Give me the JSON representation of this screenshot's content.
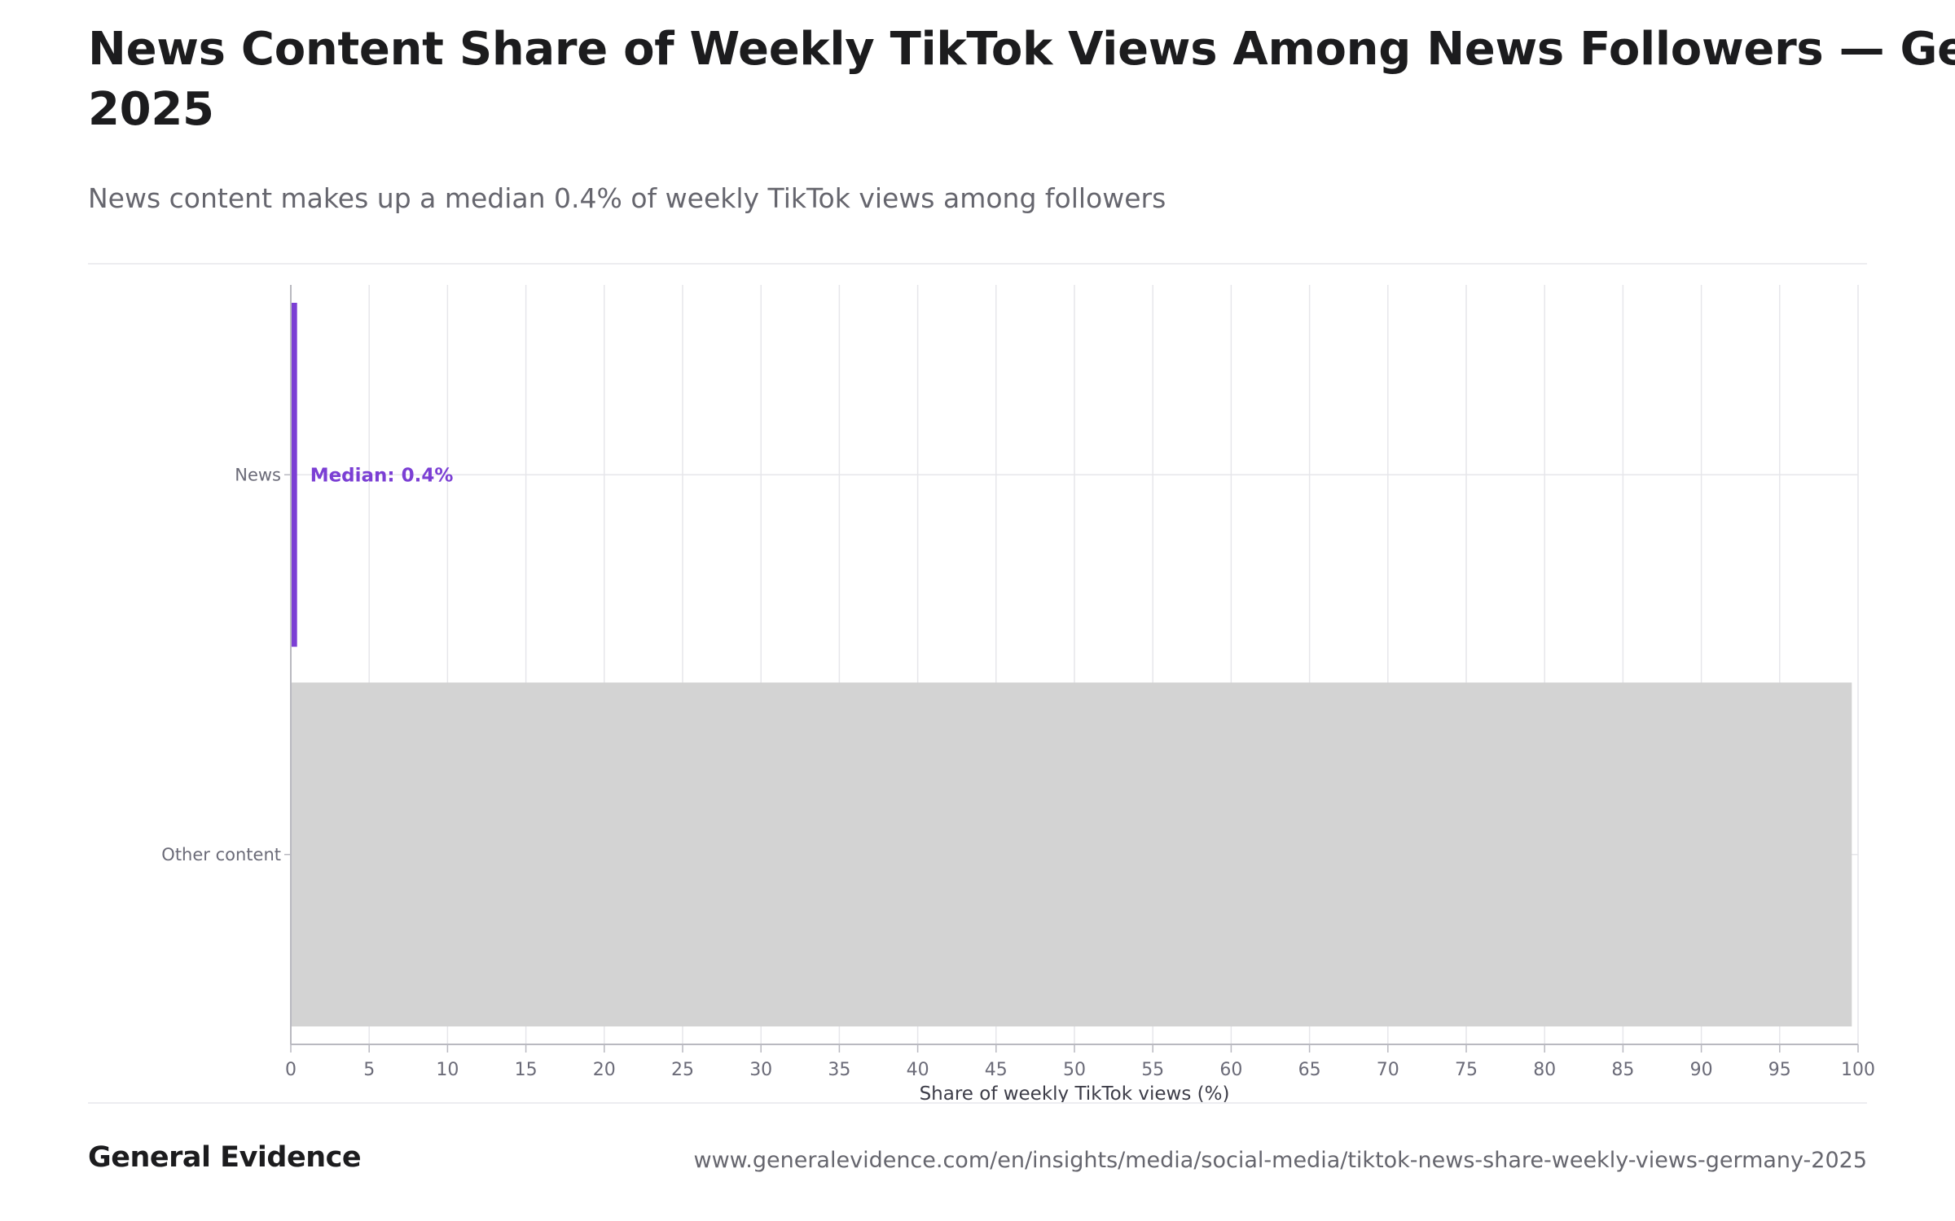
{
  "header": {
    "title_line1": "News Content Share of Weekly TikTok Views Among News Followers — Germany,",
    "title_line2": "2025",
    "subtitle": "News content makes up a median 0.4% of weekly TikTok views among followers"
  },
  "colors": {
    "news_bar": "#7b3fd4",
    "other_bar": "#d3d3d3",
    "grid": "#e6e6ea",
    "axis": "#b9b9c0",
    "annotation": "#7b3fd4"
  },
  "chart_data": {
    "type": "bar",
    "orientation": "horizontal",
    "categories": [
      "News",
      "Other content"
    ],
    "values": [
      0.4,
      99.6
    ],
    "xlabel": "Share of weekly TikTok views (%)",
    "ylabel": "",
    "xlim": [
      0,
      100
    ],
    "xticks": [
      0,
      5,
      10,
      15,
      20,
      25,
      30,
      35,
      40,
      45,
      50,
      55,
      60,
      65,
      70,
      75,
      80,
      85,
      90,
      95,
      100
    ],
    "grid": true,
    "annotations": [
      {
        "category": "News",
        "text": "Median: 0.4%"
      }
    ]
  },
  "footer": {
    "brand": "General Evidence",
    "url": "www.generalevidence.com/en/insights/media/social-media/tiktok-news-share-weekly-views-germany-2025"
  }
}
